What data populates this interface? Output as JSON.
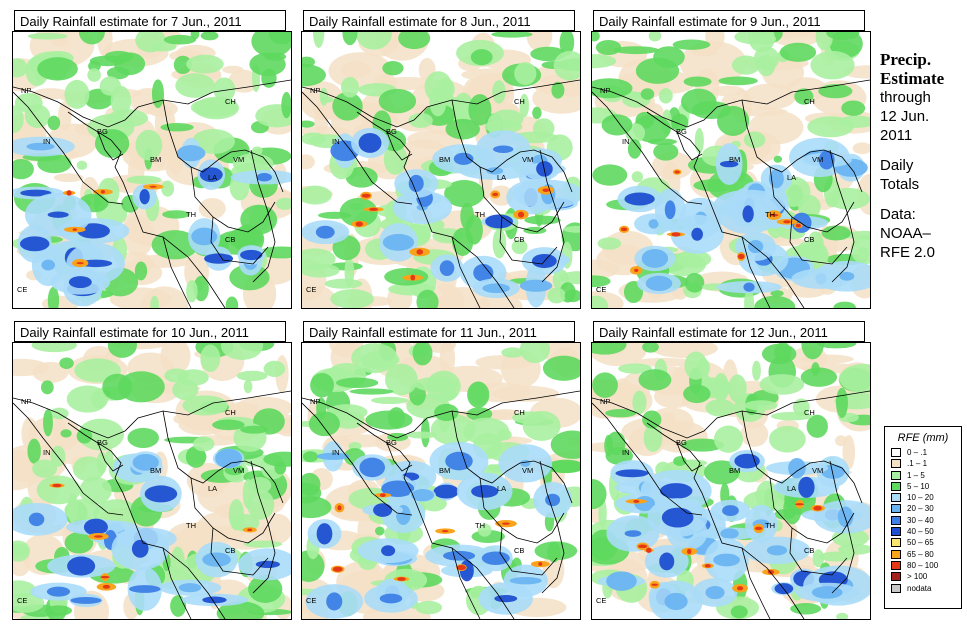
{
  "panels": [
    {
      "title": "Daily Rainfall estimate for  7 Jun., 2011",
      "intensity": 1
    },
    {
      "title": "Daily Rainfall estimate for  8 Jun., 2011",
      "intensity": 2
    },
    {
      "title": "Daily Rainfall estimate for  9 Jun., 2011",
      "intensity": 2
    },
    {
      "title": "Daily Rainfall estimate for  10 Jun., 2011",
      "intensity": 1
    },
    {
      "title": "Daily Rainfall estimate for  11 Jun., 2011",
      "intensity": 2
    },
    {
      "title": "Daily Rainfall estimate for  12 Jun., 2011",
      "intensity": 3
    }
  ],
  "country_labels": [
    "NP",
    "CH",
    "IN",
    "BG",
    "BM",
    "VM",
    "LA",
    "TH",
    "CB",
    "CE"
  ],
  "side": {
    "title1": "Precip.",
    "title2": "Estimate",
    "through": "through",
    "date1": "12 Jun.",
    "date2": "2011",
    "daily": "Daily",
    "totals": "Totals",
    "data_label": "Data:",
    "source1": "NOAA–",
    "source2": "RFE 2.0"
  },
  "legend": {
    "title": "RFE (mm)",
    "entries": [
      {
        "label": "0 – .1",
        "color": "#ffffff"
      },
      {
        "label": ".1 – 1",
        "color": "#f4e1c6"
      },
      {
        "label": "1 – 5",
        "color": "#a8efa0"
      },
      {
        "label": "5 – 10",
        "color": "#5ed85e"
      },
      {
        "label": "10 – 20",
        "color": "#aadcf8"
      },
      {
        "label": "20 – 30",
        "color": "#6bb4f2"
      },
      {
        "label": "30 – 40",
        "color": "#3d7fe6"
      },
      {
        "label": "40 – 50",
        "color": "#1f4fd1"
      },
      {
        "label": "50 – 65",
        "color": "#fbe56e"
      },
      {
        "label": "65 – 80",
        "color": "#f9a31c"
      },
      {
        "label": "80 – 100",
        "color": "#e53915"
      },
      {
        "label": "> 100",
        "color": "#a2231d"
      },
      {
        "label": "nodata",
        "color": "#c8c8c8"
      }
    ]
  }
}
